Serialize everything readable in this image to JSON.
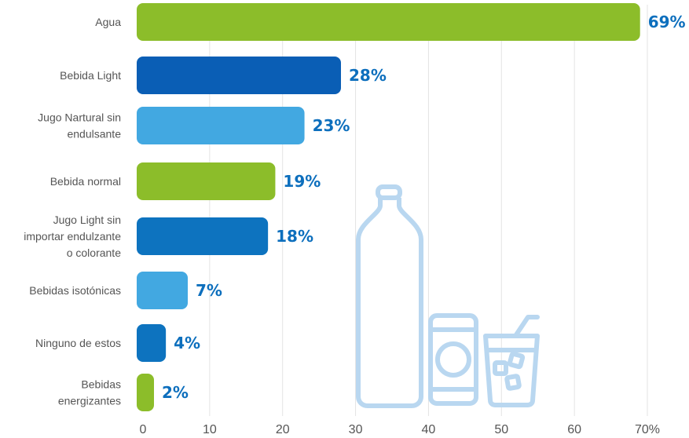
{
  "chart_data": {
    "type": "bar",
    "orientation": "horizontal",
    "categories": [
      [
        "Agua"
      ],
      [
        "Bebida Light"
      ],
      [
        "Jugo Nartural sin",
        "endulsante"
      ],
      [
        "Bebida normal"
      ],
      [
        "Jugo Light sin",
        "importar endulzante",
        "o colorante"
      ],
      [
        "Bebidas isotónicas"
      ],
      [
        "Ninguno de estos"
      ],
      [
        "Bebidas",
        "energizantes"
      ]
    ],
    "values": [
      69,
      28,
      23,
      19,
      18,
      7,
      4,
      2
    ],
    "value_labels": [
      "69%",
      "28%",
      "23%",
      "19%",
      "18%",
      "7%",
      "4%",
      "2%"
    ],
    "bar_colors": [
      "#8cbd2a",
      "#0a5eb5",
      "#42a8e1",
      "#8cbd2a",
      "#0d73bf",
      "#42a8e1",
      "#0d73bf",
      "#8cbd2a"
    ],
    "value_label_color": "#0d6fbd",
    "xlim": [
      0,
      70
    ],
    "xticks": [
      0,
      10,
      20,
      30,
      40,
      50,
      60,
      70
    ],
    "xtick_labels": [
      "0",
      "10",
      "20",
      "30",
      "40",
      "50",
      "60",
      "70%"
    ],
    "grid": true,
    "title": "",
    "xlabel": "",
    "ylabel": "",
    "decoration": "bottle-can-glass-outline-icons"
  }
}
